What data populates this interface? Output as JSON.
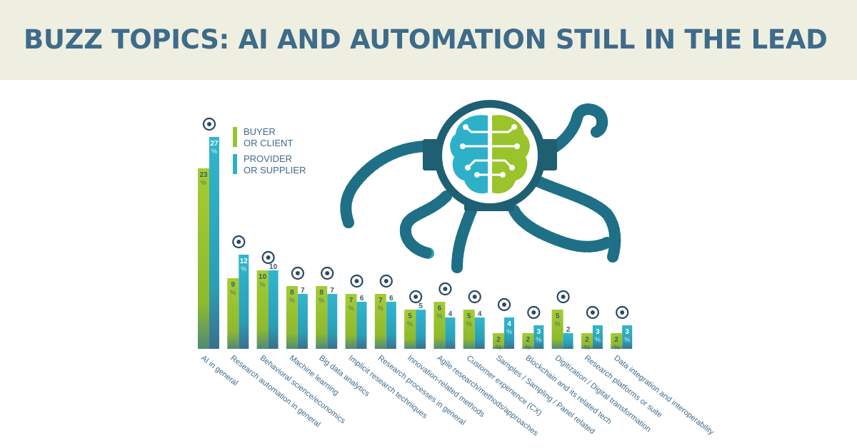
{
  "page": {
    "title": "BUZZ TOPICS: AI AND AUTOMATION STILL IN THE LEAD"
  },
  "colors": {
    "header_bg": "#eeefe1",
    "title": "#3e6b8a",
    "buyer": "#9ac32c",
    "provider": "#2eb1c8",
    "text": "#3e6b8a",
    "bar_label": "#3b5a6e"
  },
  "legend": {
    "buyer": "BUYER\nOR CLIENT",
    "provider": "PROVIDER\nOR SUPPLIER"
  },
  "chart_data": {
    "type": "bar",
    "unit": "%",
    "categories": [
      "AI in general",
      "Research automation in general",
      "Behavioral science/economics",
      "Machine learning",
      "Big data analytics",
      "Implicit research techniques",
      "Research processes in general",
      "Innovation-related methods",
      "Agile research/methods/approaches",
      "Customer experience (CX)",
      "Samples / Sampling / Panel related",
      "Blockchain and its related tech",
      "Digitization / Digital transformation",
      "Research platforms or suite",
      "Data integration and interoperability"
    ],
    "series": [
      {
        "name": "BUYER OR CLIENT",
        "values": [
          23,
          9,
          10,
          8,
          8,
          7,
          7,
          5,
          6,
          5,
          2,
          2,
          5,
          2,
          2
        ]
      },
      {
        "name": "PROVIDER OR SUPPLIER",
        "values": [
          27,
          12,
          10,
          7,
          7,
          6,
          6,
          5,
          4,
          4,
          4,
          3,
          2,
          3,
          3
        ]
      }
    ],
    "icons": [
      "brain-circuit-icon",
      "cpu-chip-icon",
      "apple-shapes-icon",
      "robot-icon",
      "data-network-icon",
      "fingerprint-icon",
      "microscope-icon",
      "rocket-icon",
      "refresh-arrows-icon",
      "magnify-person-icon",
      "pipette-icon",
      "chain-link-icon",
      "binary-code-icon",
      "presentation-board-icon",
      "shuffle-card-icon"
    ]
  }
}
